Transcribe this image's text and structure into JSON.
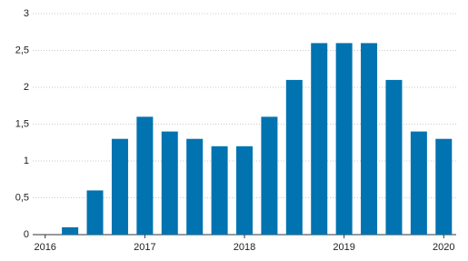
{
  "chart_data": {
    "type": "bar",
    "categories": [
      "2016",
      null,
      null,
      null,
      "2017",
      null,
      null,
      null,
      "2018",
      null,
      null,
      null,
      "2019",
      null,
      null,
      null,
      "2020"
    ],
    "values": [
      0,
      0.1,
      0.6,
      1.3,
      1.6,
      1.4,
      1.3,
      1.2,
      1.2,
      1.6,
      2.1,
      2.6,
      2.6,
      2.6,
      2.1,
      1.4,
      1.3
    ],
    "color": "#0073b0",
    "ylim": [
      0,
      3
    ],
    "yticks": [
      0,
      {
        "value": 0.5,
        "label": "0,5"
      },
      1,
      {
        "value": 1.5,
        "label": "1,5"
      },
      2,
      {
        "value": 2.5,
        "label": "2,5"
      },
      3
    ],
    "grid": true
  }
}
